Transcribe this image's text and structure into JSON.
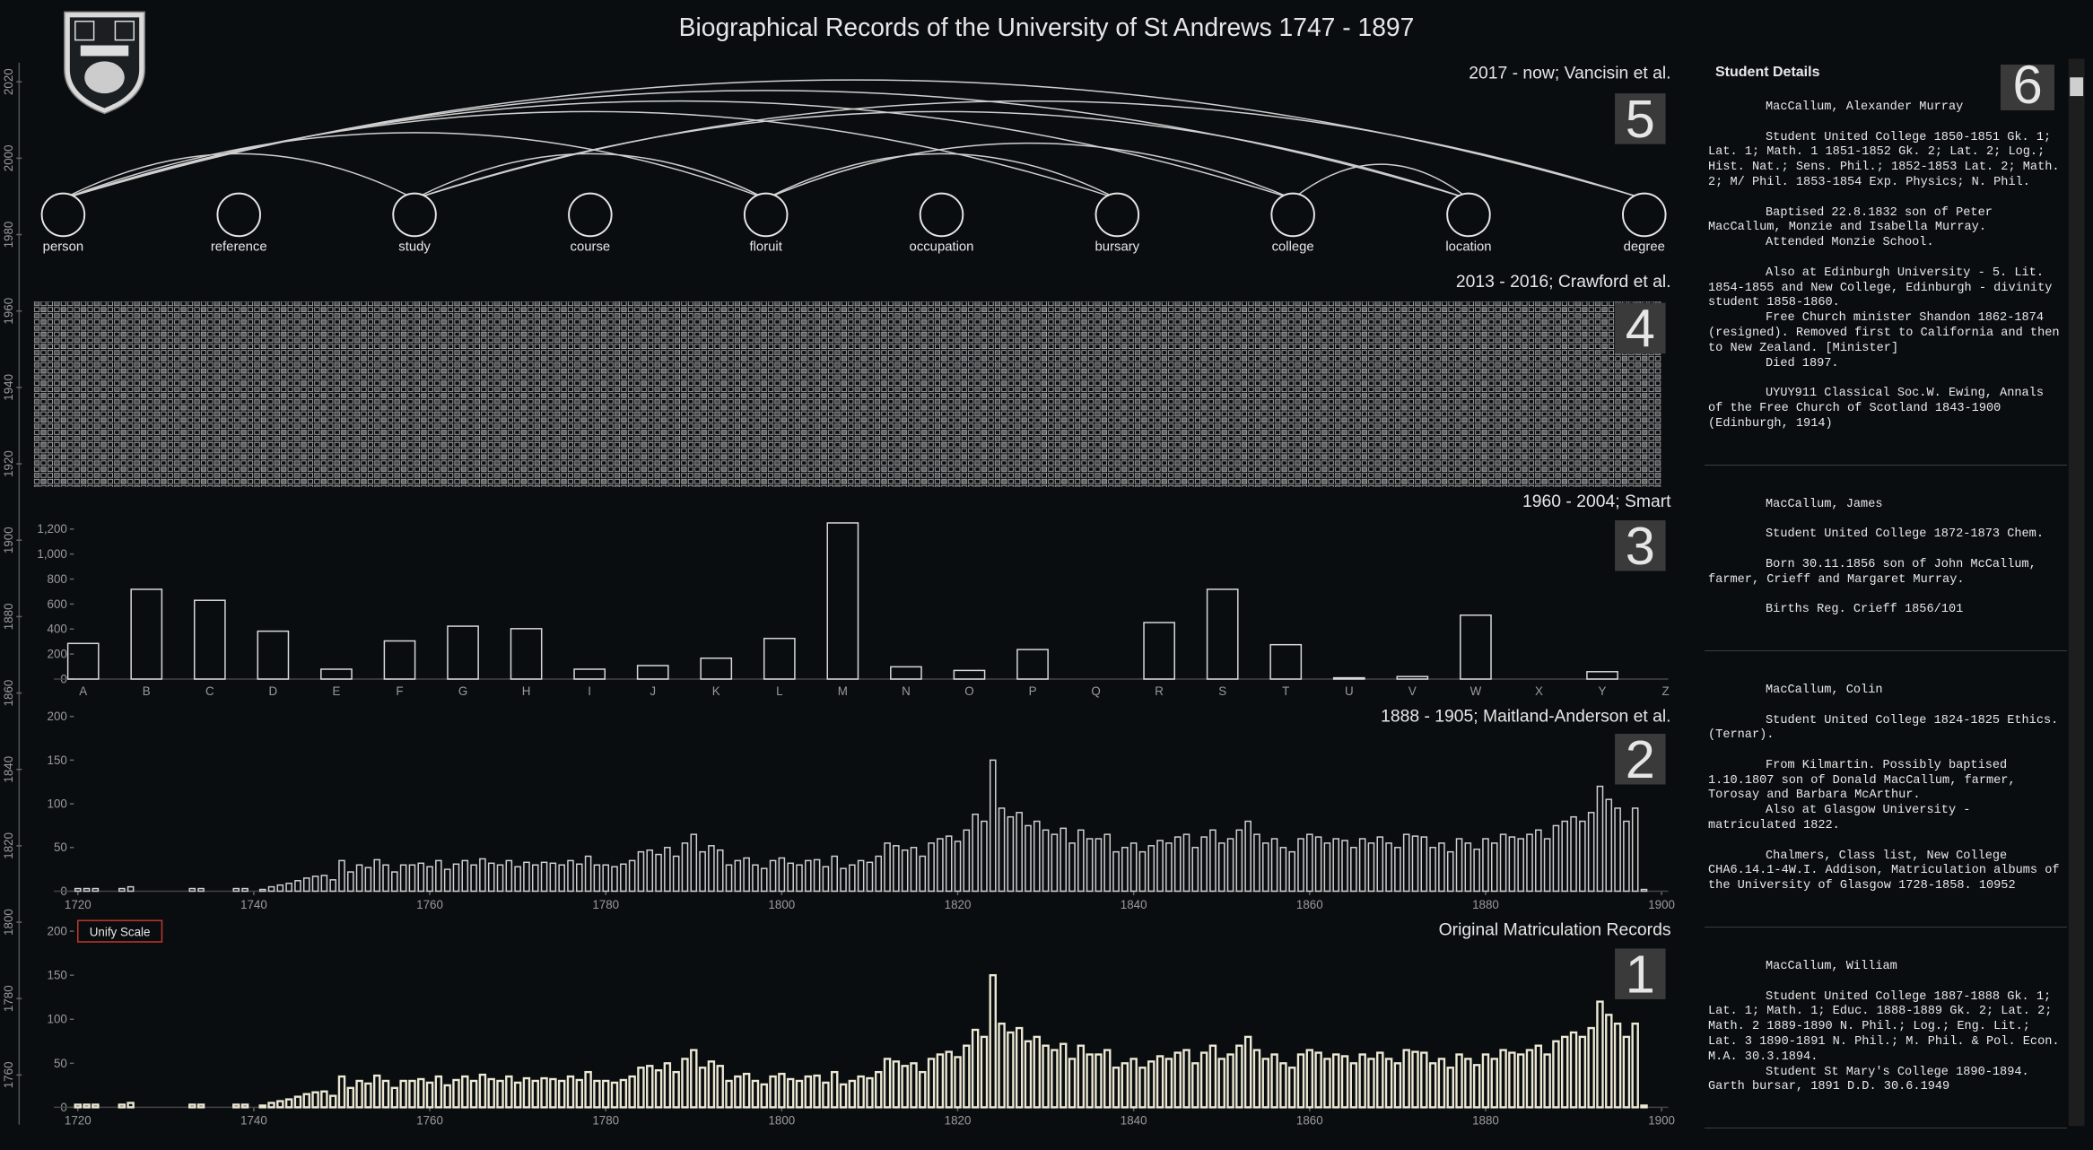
{
  "header": {
    "title": "Biographical Records of the University of St Andrews 1747 - 1897"
  },
  "timeline": {
    "ylim": [
      1747,
      2025
    ],
    "yticks": [
      1760,
      1780,
      1800,
      1820,
      1840,
      1860,
      1880,
      1900,
      1920,
      1940,
      1960,
      1980,
      2000,
      2020
    ]
  },
  "diagram": {
    "label": "2017 - now; Vancisin et al.",
    "number": "5",
    "nodes": [
      "person",
      "reference",
      "study",
      "course",
      "floruit",
      "occupation",
      "bursary",
      "college",
      "location",
      "degree"
    ],
    "links": [
      {
        "source": "person",
        "target": "degree"
      },
      {
        "source": "person",
        "target": "location"
      },
      {
        "source": "person",
        "target": "college"
      },
      {
        "source": "person",
        "target": "bursary"
      },
      {
        "source": "person",
        "target": "floruit"
      },
      {
        "source": "person",
        "target": "study"
      },
      {
        "source": "study",
        "target": "degree"
      },
      {
        "source": "study",
        "target": "location"
      },
      {
        "source": "study",
        "target": "floruit"
      },
      {
        "source": "floruit",
        "target": "college"
      },
      {
        "source": "floruit",
        "target": "bursary"
      },
      {
        "source": "college",
        "target": "location"
      }
    ]
  },
  "grid_panel": {
    "label": "2013 - 2016; Crawford et al.",
    "number": "4"
  },
  "chart_data": [
    {
      "type": "bar",
      "label": "1960 - 2004; Smart",
      "number": "3",
      "color": "#d8d8d8",
      "categories": [
        "A",
        "B",
        "C",
        "D",
        "E",
        "F",
        "G",
        "H",
        "I",
        "J",
        "K",
        "L",
        "M",
        "N",
        "O",
        "P",
        "Q",
        "R",
        "S",
        "T",
        "U",
        "V",
        "W",
        "X",
        "Y",
        "Z"
      ],
      "values": [
        285,
        718,
        630,
        383,
        79,
        305,
        423,
        403,
        79,
        108,
        167,
        325,
        1249,
        98,
        69,
        236,
        0,
        452,
        718,
        275,
        10,
        20,
        511,
        0,
        59,
        0
      ],
      "ylim": [
        0,
        1250
      ],
      "yticks": [
        0,
        200,
        400,
        600,
        800,
        {
          "value": 1000,
          "label": "1,000"
        },
        {
          "value": 1200,
          "label": "1,200"
        }
      ]
    },
    {
      "type": "bar",
      "label": "1888 - 1905; Maitland-Anderson et al.",
      "number": "2",
      "color": "#cfcfcf",
      "x": [
        1720,
        1721,
        1722,
        1723,
        1724,
        1725,
        1726,
        1727,
        1728,
        1729,
        1730,
        1731,
        1732,
        1733,
        1734,
        1735,
        1736,
        1737,
        1738,
        1739,
        1740,
        1741,
        1742,
        1743,
        1744,
        1745,
        1746,
        1747,
        1748,
        1749,
        1750,
        1751,
        1752,
        1753,
        1754,
        1755,
        1756,
        1757,
        1758,
        1759,
        1760,
        1761,
        1762,
        1763,
        1764,
        1765,
        1766,
        1767,
        1768,
        1769,
        1770,
        1771,
        1772,
        1773,
        1774,
        1775,
        1776,
        1777,
        1778,
        1779,
        1780,
        1781,
        1782,
        1783,
        1784,
        1785,
        1786,
        1787,
        1788,
        1789,
        1790,
        1791,
        1792,
        1793,
        1794,
        1795,
        1796,
        1797,
        1798,
        1799,
        1800,
        1801,
        1802,
        1803,
        1804,
        1805,
        1806,
        1807,
        1808,
        1809,
        1810,
        1811,
        1812,
        1813,
        1814,
        1815,
        1816,
        1817,
        1818,
        1819,
        1820,
        1821,
        1822,
        1823,
        1824,
        1825,
        1826,
        1827,
        1828,
        1829,
        1830,
        1831,
        1832,
        1833,
        1834,
        1835,
        1836,
        1837,
        1838,
        1839,
        1840,
        1841,
        1842,
        1843,
        1844,
        1845,
        1846,
        1847,
        1848,
        1849,
        1850,
        1851,
        1852,
        1853,
        1854,
        1855,
        1856,
        1857,
        1858,
        1859,
        1860,
        1861,
        1862,
        1863,
        1864,
        1865,
        1866,
        1867,
        1868,
        1869,
        1870,
        1871,
        1872,
        1873,
        1874,
        1875,
        1876,
        1877,
        1878,
        1879,
        1880,
        1881,
        1882,
        1883,
        1884,
        1885,
        1886,
        1887,
        1888,
        1889,
        1890,
        1891,
        1892,
        1893,
        1894,
        1895,
        1896,
        1897,
        1898
      ],
      "values": [
        3,
        3,
        3,
        0,
        0,
        3,
        5,
        0,
        0,
        0,
        0,
        0,
        0,
        3,
        3,
        0,
        0,
        0,
        3,
        3,
        0,
        2,
        5,
        7,
        9,
        12,
        15,
        17,
        18,
        13,
        35,
        22,
        30,
        27,
        36,
        30,
        22,
        30,
        30,
        32,
        28,
        35,
        25,
        31,
        35,
        30,
        37,
        32,
        30,
        35,
        28,
        33,
        30,
        33,
        32,
        30,
        35,
        31,
        40,
        30,
        30,
        28,
        31,
        35,
        45,
        47,
        42,
        50,
        40,
        55,
        65,
        45,
        52,
        47,
        30,
        35,
        38,
        30,
        26,
        35,
        38,
        32,
        30,
        35,
        36,
        28,
        40,
        26,
        30,
        35,
        33,
        40,
        55,
        52,
        47,
        50,
        40,
        55,
        60,
        63,
        57,
        70,
        88,
        80,
        150,
        95,
        85,
        90,
        75,
        80,
        70,
        65,
        72,
        55,
        70,
        60,
        60,
        65,
        45,
        50,
        55,
        45,
        52,
        58,
        55,
        62,
        65,
        50,
        62,
        70,
        55,
        60,
        70,
        80,
        65,
        55,
        60,
        50,
        45,
        60,
        65,
        62,
        55,
        60,
        58,
        50,
        60,
        55,
        62,
        55,
        50,
        65,
        63,
        62,
        50,
        55,
        45,
        60,
        55,
        48,
        60,
        55,
        65,
        62,
        60,
        65,
        70,
        60,
        75,
        80,
        85,
        80,
        90,
        120,
        105,
        95,
        80,
        95,
        2
      ],
      "xlim": [
        1720,
        1900
      ],
      "xticks": [
        1720,
        1740,
        1760,
        1780,
        1800,
        1820,
        1840,
        1860,
        1880,
        1900
      ],
      "ylim": [
        0,
        200
      ],
      "yticks": [
        0,
        50,
        100,
        150,
        200
      ]
    },
    {
      "type": "bar",
      "label": "Original Matriculation Records",
      "number": "1",
      "color": "#ece8d4",
      "button": "Unify Scale",
      "x": [
        1720,
        1721,
        1722,
        1723,
        1724,
        1725,
        1726,
        1727,
        1728,
        1729,
        1730,
        1731,
        1732,
        1733,
        1734,
        1735,
        1736,
        1737,
        1738,
        1739,
        1740,
        1741,
        1742,
        1743,
        1744,
        1745,
        1746,
        1747,
        1748,
        1749,
        1750,
        1751,
        1752,
        1753,
        1754,
        1755,
        1756,
        1757,
        1758,
        1759,
        1760,
        1761,
        1762,
        1763,
        1764,
        1765,
        1766,
        1767,
        1768,
        1769,
        1770,
        1771,
        1772,
        1773,
        1774,
        1775,
        1776,
        1777,
        1778,
        1779,
        1780,
        1781,
        1782,
        1783,
        1784,
        1785,
        1786,
        1787,
        1788,
        1789,
        1790,
        1791,
        1792,
        1793,
        1794,
        1795,
        1796,
        1797,
        1798,
        1799,
        1800,
        1801,
        1802,
        1803,
        1804,
        1805,
        1806,
        1807,
        1808,
        1809,
        1810,
        1811,
        1812,
        1813,
        1814,
        1815,
        1816,
        1817,
        1818,
        1819,
        1820,
        1821,
        1822,
        1823,
        1824,
        1825,
        1826,
        1827,
        1828,
        1829,
        1830,
        1831,
        1832,
        1833,
        1834,
        1835,
        1836,
        1837,
        1838,
        1839,
        1840,
        1841,
        1842,
        1843,
        1844,
        1845,
        1846,
        1847,
        1848,
        1849,
        1850,
        1851,
        1852,
        1853,
        1854,
        1855,
        1856,
        1857,
        1858,
        1859,
        1860,
        1861,
        1862,
        1863,
        1864,
        1865,
        1866,
        1867,
        1868,
        1869,
        1870,
        1871,
        1872,
        1873,
        1874,
        1875,
        1876,
        1877,
        1878,
        1879,
        1880,
        1881,
        1882,
        1883,
        1884,
        1885,
        1886,
        1887,
        1888,
        1889,
        1890,
        1891,
        1892,
        1893,
        1894,
        1895,
        1896,
        1897,
        1898
      ],
      "values": [
        3,
        3,
        3,
        0,
        0,
        3,
        5,
        0,
        0,
        0,
        0,
        0,
        0,
        3,
        3,
        0,
        0,
        0,
        3,
        3,
        0,
        2,
        5,
        7,
        9,
        12,
        15,
        17,
        18,
        13,
        35,
        22,
        30,
        27,
        36,
        30,
        22,
        30,
        30,
        32,
        28,
        35,
        25,
        31,
        35,
        30,
        37,
        32,
        30,
        35,
        28,
        33,
        30,
        33,
        32,
        30,
        35,
        31,
        40,
        30,
        30,
        28,
        31,
        35,
        45,
        47,
        42,
        50,
        40,
        55,
        65,
        45,
        52,
        47,
        30,
        35,
        38,
        30,
        26,
        35,
        38,
        32,
        30,
        35,
        36,
        28,
        40,
        26,
        30,
        35,
        33,
        40,
        55,
        52,
        47,
        50,
        40,
        55,
        60,
        63,
        57,
        70,
        88,
        80,
        150,
        95,
        85,
        90,
        75,
        80,
        70,
        65,
        72,
        55,
        70,
        60,
        60,
        65,
        45,
        50,
        55,
        45,
        52,
        58,
        55,
        62,
        65,
        50,
        62,
        70,
        55,
        60,
        70,
        80,
        65,
        55,
        60,
        50,
        45,
        60,
        65,
        62,
        55,
        60,
        58,
        50,
        60,
        55,
        62,
        55,
        50,
        65,
        63,
        62,
        50,
        55,
        45,
        60,
        55,
        48,
        60,
        55,
        65,
        62,
        60,
        65,
        70,
        60,
        75,
        80,
        85,
        80,
        90,
        120,
        105,
        95,
        80,
        95,
        2
      ],
      "xlim": [
        1720,
        1900
      ],
      "xticks": [
        1720,
        1740,
        1760,
        1780,
        1800,
        1820,
        1840,
        1860,
        1880,
        1900
      ],
      "ylim": [
        0,
        200
      ],
      "yticks": [
        0,
        50,
        100,
        150,
        200
      ]
    }
  ],
  "student_details": {
    "title": "Student Details",
    "number": "6",
    "records": [
      {
        "groups": [
          [
            "MacCallum, Alexander Murray"
          ],
          [
            "Student United College 1850-1851 Gk. 1; Lat. 1; Math. 1 1851-1852 Gk. 2; Lat. 2; Log.; Hist. Nat.; Sens. Phil.; 1852-1853 Lat. 2; Math. 2; M/ Phil. 1853-1854 Exp. Physics; N. Phil."
          ],
          [
            "Baptised 22.8.1832 son of Peter MacCallum, Monzie and Isabella Murray.",
            "Attended Monzie School."
          ],
          [
            "Also at Edinburgh University - 5. Lit. 1854-1855 and New College, Edinburgh - divinity student 1858-1860.",
            "Free Church minister Shandon 1862-1874 (resigned). Removed first to California and then to New Zealand. [Minister]",
            "Died 1897."
          ],
          [
            "UYUY911 Classical Soc.W. Ewing, Annals of the Free Church of Scotland 1843-1900 (Edinburgh, 1914)"
          ]
        ]
      },
      {
        "groups": [
          [
            "MacCallum, James"
          ],
          [
            "Student United College 1872-1873 Chem."
          ],
          [
            "Born 30.11.1856 son of John McCallum, farmer, Crieff and Margaret Murray."
          ],
          [
            "Births Reg. Crieff 1856/101"
          ]
        ]
      },
      {
        "groups": [
          [
            "MacCallum, Colin"
          ],
          [
            "Student United College 1824-1825 Ethics. (Ternar)."
          ],
          [
            "From Kilmartin. Possibly baptised 1.10.1807 son of Donald MacCallum, farmer, Torosay and Barbara McArthur.",
            "Also at Glasgow University - matriculated 1822."
          ],
          [
            "Chalmers, Class list, New College CHA6.14.1-4W.I. Addison, Matriculation albums of the University of Glasgow 1728-1858. 10952"
          ]
        ]
      },
      {
        "groups": [
          [
            "MacCallum, William"
          ],
          [
            "Student United College 1887-1888 Gk. 1; Lat. 1; Math. 1; Educ. 1888-1889 Gk. 2; Lat. 2; Math. 2 1889-1890 N. Phil.; Log.; Eng. Lit.; Lat. 3 1890-1891 N. Phil.; M. Phil. & Pol. Econ. M.A. 30.3.1894.",
            "Student St Mary's College 1890-1894. Garth bursar, 1891 D.D. 30.6.1949"
          ]
        ]
      }
    ]
  }
}
